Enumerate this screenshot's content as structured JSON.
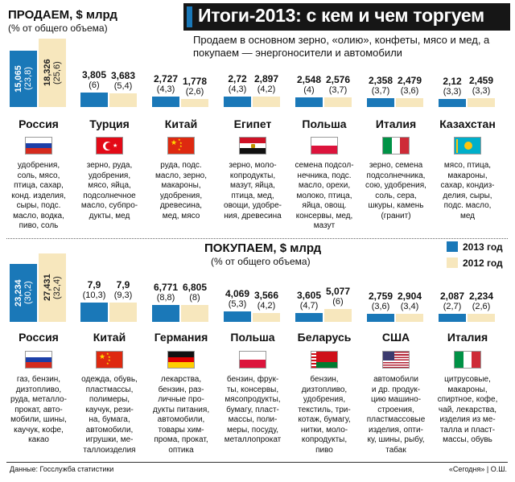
{
  "header": {
    "title": "Итоги-2013: с кем и чем торгуем",
    "subtitle": "Продаем в основном зерно, «олию», конфеты, мясо и мед, а покупаем — энергоносители и автомобили"
  },
  "colors": {
    "year_2013": "#1a78b8",
    "year_2012": "#f7e7bd"
  },
  "legend": {
    "y2013": "2013 год",
    "y2012": "2012 год"
  },
  "footer": {
    "source": "Данные: Госслужба статистики",
    "credit": "«Сегодня» | О.Ш."
  },
  "chart_data": [
    {
      "type": "bar",
      "title": "ПРОДАЕМ, $ млрд",
      "subtitle": "(% от общего объема)",
      "series_names": [
        "2013 год",
        "2012 год"
      ],
      "categories": [
        "Россия",
        "Турция",
        "Китай",
        "Египет",
        "Польша",
        "Италия",
        "Казахстан"
      ],
      "series": [
        {
          "name": "2013 год",
          "values": [
            15.065,
            3.805,
            2.727,
            2.72,
            2.548,
            2.358,
            2.12
          ]
        },
        {
          "name": "2012 год",
          "values": [
            18.326,
            3.683,
            1.778,
            2.897,
            2.576,
            2.479,
            2.459
          ]
        }
      ],
      "entries": [
        {
          "country": "Россия",
          "flag": "russia",
          "v2013": "15,065",
          "p2013": "(23,8)",
          "v2012": "18,326",
          "p2012": "(25,6)",
          "lines": [
            "удобрения,",
            "соль, мясо,",
            "птица, сахар,",
            "конд. изделия,",
            "сыры, подс.",
            "масло, водка,",
            "пиво, соль"
          ]
        },
        {
          "country": "Турция",
          "flag": "turkey",
          "v2013": "3,805",
          "p2013": "(6)",
          "v2012": "3,683",
          "p2012": "(5,4)",
          "lines": [
            "зерно, руда,",
            "удобрения,",
            "мясо, яйца,",
            "подсолнечное",
            "масло, субпро-",
            "дукты, мед"
          ]
        },
        {
          "country": "Китай",
          "flag": "china",
          "v2013": "2,727",
          "p2013": "(4,3)",
          "v2012": "1,778",
          "p2012": "(2,6)",
          "lines": [
            "руда, подс.",
            "масло, зерно,",
            "макароны,",
            "удобрения,",
            "древесина,",
            "мед, мясо"
          ]
        },
        {
          "country": "Египет",
          "flag": "egypt",
          "v2013": "2,72",
          "p2013": "(4,3)",
          "v2012": "2,897",
          "p2012": "(4,2)",
          "lines": [
            "зерно, моло-",
            "копродукты,",
            "мазут, яйца,",
            "птица, мед,",
            "овощи, удобре-",
            "ния, древесина"
          ]
        },
        {
          "country": "Польша",
          "flag": "poland",
          "v2013": "2,548",
          "p2013": "(4)",
          "v2012": "2,576",
          "p2012": "(3,7)",
          "lines": [
            "семена подсол-",
            "нечника, подс.",
            "масло, орехи,",
            "молоко, птица,",
            "яйца, овощ.",
            "консервы, мед,",
            "мазут"
          ]
        },
        {
          "country": "Италия",
          "flag": "italy",
          "v2013": "2,358",
          "p2013": "(3,7)",
          "v2012": "2,479",
          "p2012": "(3,6)",
          "lines": [
            "зерно, семена",
            "подсолнечника,",
            "сою, удобрения,",
            "соль, сера,",
            "шкуры, камень",
            "(гранит)"
          ]
        },
        {
          "country": "Казахстан",
          "flag": "kazakhstan",
          "v2013": "2,12",
          "p2013": "(3,3)",
          "v2012": "2,459",
          "p2012": "(3,3)",
          "lines": [
            "мясо, птица,",
            "макароны,",
            "сахар, кондиз-",
            "делия, сыры,",
            "подс. масло,",
            "мед"
          ]
        }
      ]
    },
    {
      "type": "bar",
      "title": "ПОКУПАЕМ, $ млрд",
      "subtitle": "(% от общего объема)",
      "series_names": [
        "2013 год",
        "2012 год"
      ],
      "categories": [
        "Россия",
        "Китай",
        "Германия",
        "Польша",
        "Беларусь",
        "США",
        "Италия"
      ],
      "series": [
        {
          "name": "2013 год",
          "values": [
            23.234,
            7.9,
            6.771,
            4.069,
            3.605,
            2.759,
            2.087
          ]
        },
        {
          "name": "2012 год",
          "values": [
            27.431,
            7.9,
            6.805,
            3.566,
            5.077,
            2.904,
            2.234
          ]
        }
      ],
      "entries": [
        {
          "country": "Россия",
          "flag": "russia",
          "v2013": "23,234",
          "p2013": "(30,2)",
          "v2012": "27,431",
          "p2012": "(32,4)",
          "lines": [
            "газ, бензин,",
            "дизтопливо,",
            "руда, металло-",
            "прокат, авто-",
            "мобили, шины,",
            "каучук, кофе,",
            "какао"
          ]
        },
        {
          "country": "Китай",
          "flag": "china",
          "v2013": "7,9",
          "p2013": "(10,3)",
          "v2012": "7,9",
          "p2012": "(9,3)",
          "lines": [
            "одежда, обувь,",
            "пластмассы,",
            "полимеры,",
            "каучук, рези-",
            "на, бумага,",
            "автомобили,",
            "игрушки, ме-",
            "таллоизделия"
          ]
        },
        {
          "country": "Германия",
          "flag": "germany",
          "v2013": "6,771",
          "p2013": "(8,8)",
          "v2012": "6,805",
          "p2012": "(8)",
          "lines": [
            "лекарства,",
            "бензин, раз-",
            "личные про-",
            "дукты питания,",
            "автомобили,",
            "товары хим-",
            "прома, прокат,",
            "оптика"
          ]
        },
        {
          "country": "Польша",
          "flag": "poland",
          "v2013": "4,069",
          "p2013": "(5,3)",
          "v2012": "3,566",
          "p2012": "(4,2)",
          "lines": [
            "бензин, фрук-",
            "ты, консервы,",
            "мясопродукты,",
            "бумагу, пласт-",
            "массы, поли-",
            "меры, посуду,",
            "металлопрокат"
          ]
        },
        {
          "country": "Беларусь",
          "flag": "belarus",
          "v2013": "3,605",
          "p2013": "(4,7)",
          "v2012": "5,077",
          "p2012": "(6)",
          "lines": [
            "бензин,",
            "дизтопливо,",
            "удобрения,",
            "текстиль, три-",
            "котаж, бумагу,",
            "нитки, моло-",
            "копродукты,",
            "пиво"
          ]
        },
        {
          "country": "США",
          "flag": "usa",
          "v2013": "2,759",
          "p2013": "(3,6)",
          "v2012": "2,904",
          "p2012": "(3,4)",
          "lines": [
            "автомобили",
            "и др. продук-",
            "цию машино-",
            "строения,",
            "пластмассовые",
            "изделия, опти-",
            "ку, шины, рыбу,",
            "табак"
          ]
        },
        {
          "country": "Италия",
          "flag": "italy",
          "v2013": "2,087",
          "p2013": "(2,7)",
          "v2012": "2,234",
          "p2012": "(2,6)",
          "lines": [
            "цитрусовые,",
            "макароны,",
            "спиртное, кофе,",
            "чай, лекарства,",
            "изделия из ме-",
            "талла и пласт-",
            "массы, обувь"
          ]
        }
      ]
    }
  ]
}
